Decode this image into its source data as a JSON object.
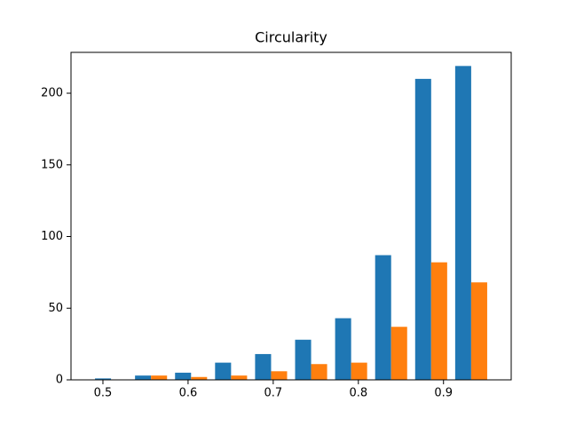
{
  "chart_data": {
    "type": "histogram",
    "title": "Circularity",
    "bins": [
      0.486,
      0.533,
      0.58,
      0.627,
      0.674,
      0.721,
      0.768,
      0.815,
      0.862,
      0.909,
      0.956
    ],
    "series": [
      {
        "color": "#1f77b4",
        "values": [
          1,
          3,
          5,
          12,
          18,
          28,
          43,
          87,
          210,
          219
        ]
      },
      {
        "color": "#ff7f0e",
        "values": [
          0,
          3,
          2,
          3,
          6,
          11,
          12,
          37,
          82,
          68
        ]
      }
    ],
    "xlim": [
      0.4625,
      0.9795
    ],
    "xticks": [
      0.5,
      0.6,
      0.7,
      0.8,
      0.9
    ],
    "ylim": [
      0,
      228.5
    ],
    "yticks": [
      0,
      50,
      100,
      150,
      200
    ]
  }
}
